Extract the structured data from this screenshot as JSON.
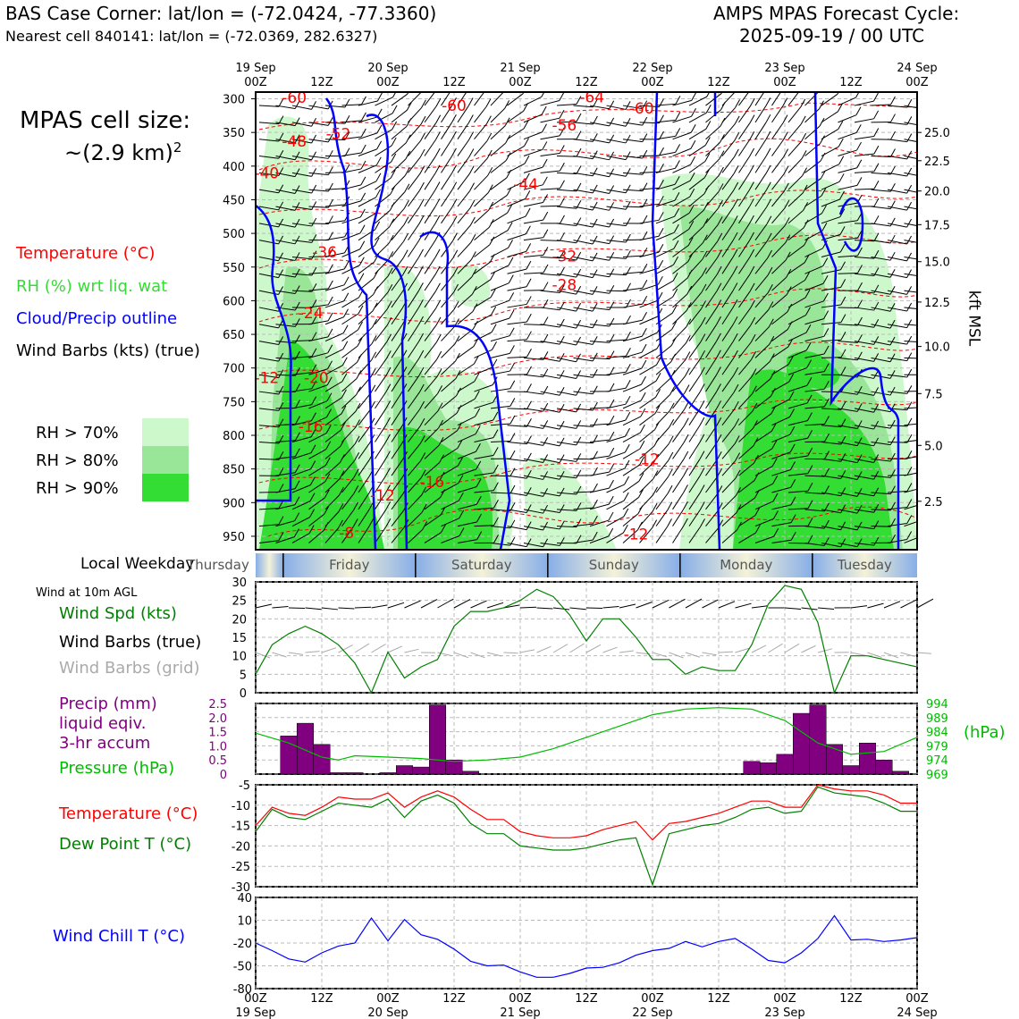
{
  "header": {
    "title_left": "BAS Case Corner: lat/lon = (-72.0424, -77.3360)",
    "subtitle_left": "Nearest cell 840141: lat/lon = (-72.0369, 282.6327)",
    "title_right_line1": "AMPS MPAS Forecast Cycle:",
    "title_right_line2": "2025-09-19 / 00 UTC"
  },
  "cell_size": {
    "line1": "MPAS cell size:",
    "line2": "~(2.9 km)",
    "exponent": "2"
  },
  "legend": {
    "temperature": "Temperature (°C)",
    "rh": "RH (%) wrt liq. wat",
    "cloud": "Cloud/Precip outline",
    "barbs": "Wind Barbs (kts) (true)",
    "rh70": "RH > 70%",
    "rh80": "RH > 80%",
    "rh90": "RH > 90%"
  },
  "colors": {
    "temperature": "#ff0000",
    "rh_text": "#33dd33",
    "cloud": "#0000ff",
    "rh70": "#ccf8cc",
    "rh80": "#99e699",
    "rh90": "#33dd33",
    "precip": "#800080",
    "pressure": "#00bb00",
    "dewpoint": "#008000",
    "windchill": "#0000ff",
    "grid_barbs": "#aaaaaa"
  },
  "time_axis": {
    "top_row1": [
      "19 Sep",
      "",
      "20 Sep",
      "",
      "21 Sep",
      "",
      "22 Sep",
      "",
      "23 Sep",
      "",
      "24 Sep"
    ],
    "top_row2": [
      "00Z",
      "12Z",
      "00Z",
      "12Z",
      "00Z",
      "12Z",
      "00Z",
      "12Z",
      "00Z",
      "12Z",
      "00Z"
    ],
    "bottom_row1": [
      "00Z",
      "12Z",
      "00Z",
      "12Z",
      "00Z",
      "12Z",
      "00Z",
      "12Z",
      "00Z",
      "12Z",
      "00Z"
    ],
    "bottom_row2": [
      "19 Sep",
      "",
      "20 Sep",
      "",
      "21 Sep",
      "",
      "22 Sep",
      "",
      "23 Sep",
      "",
      "24 Sep"
    ]
  },
  "weekday": {
    "label": "Local Weekday",
    "days": [
      "Thursday",
      "Friday",
      "Saturday",
      "Sunday",
      "Monday",
      "Tuesday"
    ]
  },
  "panel_labels": {
    "wind_title": "Wind at 10m AGL",
    "wind_speed": "Wind Spd (kts)",
    "wind_barbs_true": "Wind Barbs (true)",
    "wind_barbs_grid": "Wind Barbs (grid)",
    "precip1": "Precip (mm)",
    "precip2": "liquid eqiv.",
    "precip3": "3-hr accum",
    "pressure": "Pressure (hPa)",
    "pressure_unit": "(hPa)",
    "temperature": "Temperature (°C)",
    "dewpoint": "Dew Point T (°C)",
    "windchill": "Wind Chill T (°C)",
    "kft": "kft MSL"
  },
  "chart_data": [
    {
      "type": "heatmap",
      "title": "Time-height cross section",
      "ylabel": "Pressure (hPa)",
      "y_ticks": [
        "300",
        "350",
        "400",
        "450",
        "500",
        "550",
        "600",
        "650",
        "700",
        "750",
        "800",
        "850",
        "900",
        "950"
      ],
      "y_range_hpa": [
        290,
        970
      ],
      "right_ticks": [
        "25.0",
        "22.5",
        "20.0",
        "17.5",
        "15.0",
        "12.5",
        "10.0",
        "7.5",
        "5.0",
        "2.5"
      ],
      "right_tick_hpa": [
        350,
        392,
        437,
        487,
        542,
        602,
        668,
        738,
        815,
        898
      ],
      "time_range_hours": [
        0,
        120
      ],
      "temperature_labels": [
        {
          "text": "-60",
          "t": 7,
          "p": 306
        },
        {
          "text": "-60",
          "t": 36,
          "p": 318
        },
        {
          "text": "-64",
          "t": 61,
          "p": 305
        },
        {
          "text": "-60",
          "t": 70,
          "p": 322
        },
        {
          "text": "-56",
          "t": 56,
          "p": 347
        },
        {
          "text": "-52",
          "t": 15,
          "p": 360
        },
        {
          "text": "-48",
          "t": 7,
          "p": 371
        },
        {
          "text": "-40",
          "t": 2,
          "p": 418
        },
        {
          "text": "-44",
          "t": 49,
          "p": 435
        },
        {
          "text": "-36",
          "t": 12.5,
          "p": 536
        },
        {
          "text": "-32",
          "t": 56,
          "p": 542
        },
        {
          "text": "-28",
          "t": 56,
          "p": 584
        },
        {
          "text": "-24",
          "t": 10,
          "p": 626
        },
        {
          "text": "-20",
          "t": 11,
          "p": 722
        },
        {
          "text": "-16",
          "t": 10,
          "p": 795
        },
        {
          "text": "-12",
          "t": 2,
          "p": 722
        },
        {
          "text": "-12",
          "t": 23,
          "p": 897
        },
        {
          "text": "-16",
          "t": 32,
          "p": 877
        },
        {
          "text": "-8",
          "t": 16.5,
          "p": 953
        },
        {
          "text": "-12",
          "t": 69,
          "p": 955
        },
        {
          "text": "-12",
          "t": 71,
          "p": 843
        }
      ]
    },
    {
      "type": "line",
      "title": "Wind Spd (kts)",
      "ylim": [
        0,
        30
      ],
      "y_ticks": [
        "30",
        "25",
        "20",
        "15",
        "10",
        "5",
        "0"
      ],
      "x_hours": [
        0,
        3,
        6,
        9,
        12,
        15,
        18,
        21,
        24,
        27,
        30,
        33,
        36,
        39,
        42,
        45,
        48,
        51,
        54,
        57,
        60,
        63,
        66,
        69,
        72,
        75,
        78,
        81,
        84,
        87,
        90,
        93,
        96,
        99,
        102,
        105,
        108,
        111,
        114,
        117,
        120
      ],
      "values": [
        5,
        13,
        16,
        18,
        16,
        13,
        8,
        0,
        11,
        4,
        7,
        9,
        18,
        22,
        22,
        23,
        25,
        28,
        26,
        21,
        14,
        20,
        20,
        15,
        9,
        9,
        5,
        7,
        6,
        6,
        13,
        24,
        29,
        28,
        19,
        0,
        10,
        10,
        9,
        8,
        7
      ]
    },
    {
      "type": "bar",
      "title": "Precip (mm) liquid eqiv. 3-hr accum",
      "ylim": [
        0,
        2.5
      ],
      "y_ticks": [
        "2.5",
        "2.0",
        "1.5",
        "1.0",
        "0.5",
        "0"
      ],
      "x_hours": [
        6,
        9,
        12,
        15,
        18,
        21,
        24,
        27,
        30,
        33,
        36,
        39,
        42,
        90,
        93,
        96,
        99,
        102,
        105,
        108,
        111,
        114,
        117
      ],
      "values": [
        1.35,
        1.8,
        1.05,
        0.05,
        0.05,
        0.0,
        0.05,
        0.3,
        0.25,
        2.45,
        0.5,
        0.1,
        0.0,
        0.45,
        0.4,
        0.7,
        2.15,
        2.45,
        1.05,
        0.3,
        1.1,
        0.5,
        0.1
      ]
    },
    {
      "type": "line",
      "title": "Pressure (hPa)",
      "ylim": [
        969,
        994
      ],
      "y_ticks": [
        "994",
        "989",
        "984",
        "979",
        "974",
        "969"
      ],
      "x_hours": [
        0,
        6,
        12,
        15,
        18,
        24,
        30,
        36,
        42,
        48,
        54,
        60,
        66,
        72,
        78,
        84,
        90,
        96,
        102,
        108,
        114,
        120
      ],
      "values": [
        983.5,
        980,
        975,
        974,
        975.5,
        975,
        974.5,
        973.5,
        974,
        975,
        978,
        982,
        986,
        990,
        992,
        992.5,
        992,
        988,
        980,
        976,
        977,
        982
      ]
    },
    {
      "type": "line",
      "title": "Temperature / Dew Point T (°C)",
      "ylim": [
        -30,
        -5
      ],
      "y_ticks": [
        "-5",
        "-10",
        "-15",
        "-20",
        "-25",
        "-30"
      ],
      "series": [
        {
          "name": "Temperature (°C)",
          "x_hours": [
            0,
            3,
            6,
            9,
            12,
            15,
            18,
            21,
            24,
            27,
            30,
            33,
            36,
            39,
            42,
            45,
            48,
            51,
            54,
            57,
            60,
            63,
            66,
            69,
            72,
            75,
            78,
            81,
            84,
            87,
            90,
            93,
            96,
            99,
            102,
            105,
            108,
            111,
            114,
            117,
            120
          ],
          "values": [
            -15,
            -10.5,
            -12,
            -12.5,
            -10.5,
            -8,
            -8.5,
            -8.5,
            -7,
            -10.5,
            -8,
            -6.5,
            -8,
            -11,
            -13.5,
            -13.5,
            -16.5,
            -17.5,
            -18,
            -18,
            -17.5,
            -16,
            -15,
            -14,
            -18.5,
            -14.5,
            -14,
            -13,
            -12,
            -10.5,
            -9,
            -9,
            -10.5,
            -10.5,
            -5,
            -6,
            -6.5,
            -6.5,
            -7.5,
            -9.5,
            -9.5
          ]
        },
        {
          "name": "Dew Point T (°C)",
          "x_hours": [
            0,
            3,
            6,
            9,
            12,
            15,
            18,
            21,
            24,
            27,
            30,
            33,
            36,
            39,
            42,
            45,
            48,
            51,
            54,
            57,
            60,
            63,
            66,
            69,
            72,
            75,
            78,
            81,
            84,
            87,
            90,
            93,
            96,
            99,
            102,
            105,
            108,
            111,
            114,
            117,
            120
          ],
          "values": [
            -16.5,
            -11,
            -13,
            -13.5,
            -11.5,
            -9.5,
            -10,
            -10.5,
            -8.5,
            -13,
            -9,
            -7.5,
            -9.5,
            -14.5,
            -17,
            -17,
            -20,
            -20.5,
            -21,
            -21,
            -20.5,
            -19.5,
            -18.5,
            -18,
            -29.5,
            -17,
            -16,
            -15,
            -14.5,
            -13,
            -11,
            -10.5,
            -12,
            -11.5,
            -5.5,
            -7,
            -7.5,
            -8,
            -9.5,
            -11.5,
            -11.5
          ]
        }
      ]
    },
    {
      "type": "line",
      "title": "Wind Chill T (°C)",
      "ylim": [
        -80,
        40
      ],
      "y_ticks": [
        "40",
        "10",
        "-20",
        "-50",
        "-80"
      ],
      "x_hours": [
        0,
        3,
        6,
        9,
        12,
        15,
        18,
        21,
        24,
        27,
        30,
        33,
        36,
        39,
        42,
        45,
        48,
        51,
        54,
        57,
        60,
        63,
        66,
        69,
        72,
        75,
        78,
        81,
        84,
        87,
        90,
        93,
        96,
        99,
        102,
        105,
        108,
        111,
        114,
        117,
        120
      ],
      "values": [
        -20,
        -30,
        -41,
        -45,
        -33,
        -24,
        -20,
        13,
        -17,
        11,
        -9,
        -15,
        -28,
        -44,
        -50,
        -49,
        -58,
        -65,
        -65,
        -60,
        -53,
        -52,
        -46,
        -36,
        -30,
        -27,
        -18,
        -25,
        -18,
        -14,
        -28,
        -43,
        -46,
        -33,
        -14,
        16,
        -16,
        -15,
        -18,
        -16,
        -13
      ]
    }
  ]
}
